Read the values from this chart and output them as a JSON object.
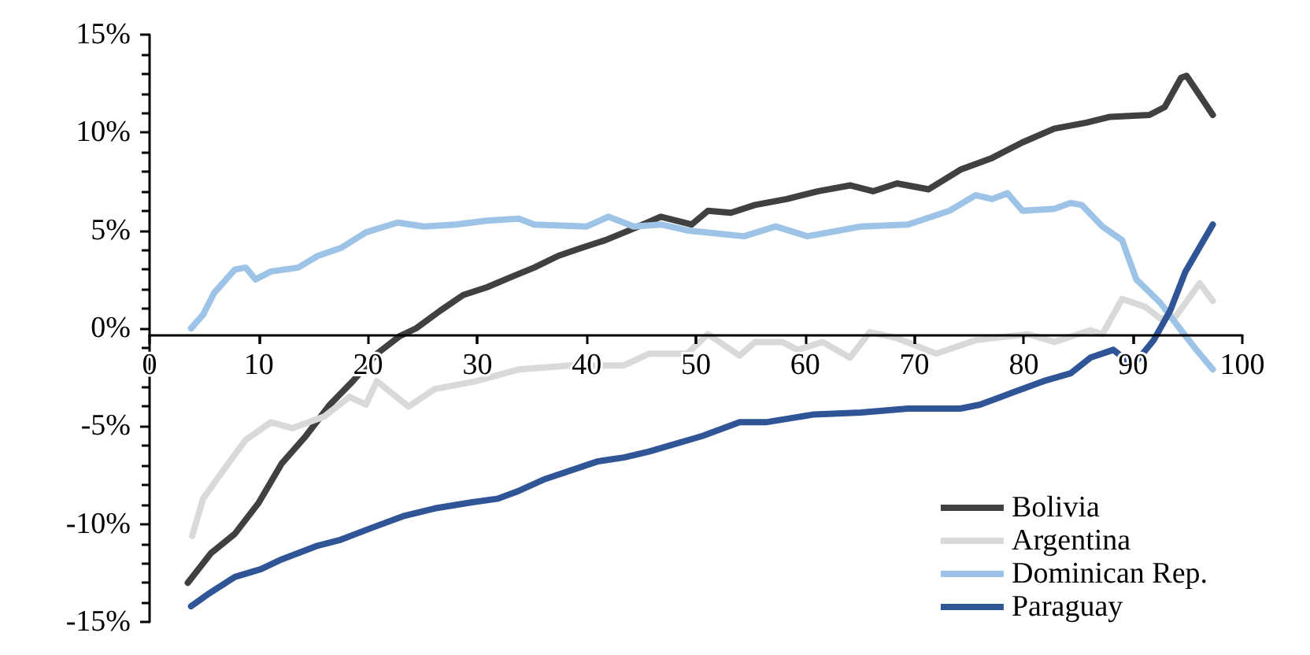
{
  "chart_data": {
    "type": "line",
    "legend": "bottom right",
    "grid": false,
    "marker": "none",
    "line_style": "solid",
    "xlim": [
      0,
      100
    ],
    "xticks": [
      0,
      10,
      20,
      30,
      40,
      50,
      60,
      70,
      80,
      90,
      100
    ],
    "ylim": [
      -15,
      15
    ],
    "yticks": [
      {
        "value": -15,
        "label": "-15%"
      },
      {
        "value": -10,
        "label": "-10%"
      },
      {
        "value": -5,
        "label": "-5%"
      },
      {
        "value": 0,
        "label": "0%"
      },
      {
        "value": 5,
        "label": "5%"
      },
      {
        "value": 10,
        "label": "10%"
      },
      {
        "value": 15,
        "label": "15%"
      }
    ],
    "series": [
      {
        "name": "Bolivia",
        "color": "#404040",
        "x": [
          3.5,
          5.6,
          7.8,
          10.0,
          12.1,
          14.3,
          16.5,
          18.6,
          20.8,
          22.9,
          24.4,
          26.6,
          28.7,
          30.9,
          33.0,
          35.2,
          37.4,
          39.5,
          41.7,
          43.9,
          46.8,
          49.6,
          51.1,
          53.2,
          55.4,
          58.3,
          61.2,
          64.1,
          66.2,
          68.4,
          71.3,
          74.2,
          77.1,
          79.9,
          82.8,
          85.7,
          87.9,
          91.5,
          92.9,
          94.4,
          94.9,
          97.3
        ],
        "values": [
          -13.0,
          -11.5,
          -10.5,
          -8.9,
          -6.9,
          -5.5,
          -3.9,
          -2.7,
          -1.3,
          -0.4,
          0.0,
          0.9,
          1.7,
          2.1,
          2.6,
          3.1,
          3.7,
          4.1,
          4.5,
          5.0,
          5.7,
          5.3,
          6.0,
          5.9,
          6.3,
          6.6,
          7.0,
          7.3,
          7.0,
          7.4,
          7.1,
          8.1,
          8.7,
          9.5,
          10.2,
          10.5,
          10.8,
          10.9,
          11.3,
          12.8,
          12.9,
          10.9
        ]
      },
      {
        "name": "Argentina",
        "color": "#d9d9d9",
        "x": [
          3.9,
          4.9,
          6.3,
          8.8,
          11.1,
          13.1,
          16.0,
          18.3,
          19.8,
          20.8,
          23.7,
          26.1,
          29.9,
          33.8,
          38.5,
          43.4,
          45.7,
          49.2,
          51.1,
          54.0,
          55.4,
          57.9,
          59.3,
          61.6,
          64.1,
          65.9,
          68.4,
          72.0,
          75.6,
          80.4,
          82.8,
          86.1,
          87.2,
          89.0,
          91.1,
          92.5,
          93.9,
          96.1,
          97.3
        ],
        "values": [
          -10.6,
          -8.7,
          -7.6,
          -5.7,
          -4.8,
          -5.1,
          -4.5,
          -3.5,
          -3.9,
          -2.7,
          -4.0,
          -3.1,
          -2.7,
          -2.1,
          -1.9,
          -1.9,
          -1.3,
          -1.3,
          -0.3,
          -1.4,
          -0.7,
          -0.7,
          -1.1,
          -0.7,
          -1.5,
          -0.2,
          -0.5,
          -1.3,
          -0.6,
          -0.3,
          -0.7,
          -0.1,
          -0.3,
          1.5,
          1.1,
          0.5,
          0.6,
          2.3,
          1.4
        ]
      },
      {
        "name": "Dominican Rep.",
        "color": "#9dc3e6",
        "x": [
          3.8,
          4.9,
          5.9,
          7.8,
          8.8,
          9.7,
          11.1,
          13.6,
          15.4,
          17.5,
          19.8,
          22.7,
          25.1,
          28.0,
          30.9,
          33.8,
          35.2,
          40.0,
          42.0,
          44.3,
          46.8,
          49.2,
          54.4,
          57.3,
          60.2,
          65.1,
          69.4,
          73.2,
          75.6,
          77.1,
          78.5,
          79.9,
          82.8,
          84.3,
          85.3,
          87.2,
          89.0,
          90.3,
          92.5,
          94.4,
          95.8,
          97.3
        ],
        "values": [
          0.0,
          0.7,
          1.8,
          3.0,
          3.1,
          2.5,
          2.9,
          3.1,
          3.7,
          4.1,
          4.9,
          5.4,
          5.2,
          5.3,
          5.5,
          5.6,
          5.3,
          5.2,
          5.7,
          5.2,
          5.3,
          5.0,
          4.7,
          5.2,
          4.7,
          5.2,
          5.3,
          6.0,
          6.8,
          6.6,
          6.9,
          6.0,
          6.1,
          6.4,
          6.3,
          5.2,
          4.5,
          2.5,
          1.3,
          -0.1,
          -1.1,
          -2.1
        ]
      },
      {
        "name": "Paraguay",
        "color": "#2f5597",
        "x": [
          3.8,
          5.3,
          7.8,
          10.2,
          12.1,
          15.4,
          17.5,
          20.3,
          23.2,
          26.1,
          29.4,
          31.9,
          33.8,
          36.2,
          41.0,
          43.4,
          45.7,
          50.6,
          54.0,
          56.4,
          60.8,
          65.1,
          69.4,
          74.2,
          76.0,
          78.9,
          81.8,
          84.3,
          86.1,
          88.2,
          90.0,
          91.9,
          93.4,
          94.8,
          97.3
        ],
        "values": [
          -14.2,
          -13.6,
          -12.7,
          -12.3,
          -11.8,
          -11.1,
          -10.8,
          -10.2,
          -9.6,
          -9.2,
          -8.9,
          -8.7,
          -8.3,
          -7.7,
          -6.8,
          -6.6,
          -6.3,
          -5.5,
          -4.8,
          -4.8,
          -4.4,
          -4.3,
          -4.1,
          -4.1,
          -3.9,
          -3.3,
          -2.7,
          -2.3,
          -1.5,
          -1.1,
          -1.9,
          -0.6,
          0.9,
          2.9,
          5.3
        ]
      }
    ]
  }
}
